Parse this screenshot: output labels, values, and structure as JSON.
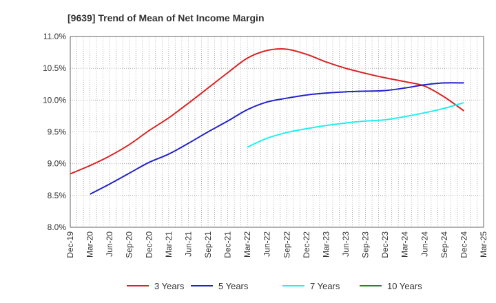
{
  "chart_data": {
    "type": "line",
    "title": "[9639]  Trend of Mean of Net Income Margin",
    "xlabel": "",
    "ylabel": "",
    "x_ticks": [
      "Dec-19",
      "Mar-20",
      "Jun-20",
      "Sep-20",
      "Dec-20",
      "Mar-21",
      "Jun-21",
      "Sep-21",
      "Dec-21",
      "Mar-22",
      "Jun-22",
      "Sep-22",
      "Dec-22",
      "Mar-23",
      "Jun-23",
      "Sep-23",
      "Dec-23",
      "Mar-24",
      "Jun-24",
      "Sep-24",
      "Dec-24",
      "Mar-25"
    ],
    "y_ticks": [
      "8.0%",
      "8.5%",
      "9.0%",
      "9.5%",
      "10.0%",
      "10.5%",
      "11.0%"
    ],
    "ylim": [
      8.0,
      11.0
    ],
    "grid": true,
    "legend_position": "bottom",
    "series": [
      {
        "name": "3 Years",
        "color": "#dd2222",
        "x": [
          "Dec-19",
          "Mar-20",
          "Jun-20",
          "Sep-20",
          "Dec-20",
          "Mar-21",
          "Jun-21",
          "Sep-21",
          "Dec-21",
          "Mar-22",
          "Jun-22",
          "Sep-22",
          "Dec-22",
          "Mar-23",
          "Jun-23",
          "Sep-23",
          "Dec-23",
          "Mar-24",
          "Jun-24",
          "Sep-24",
          "Dec-24"
        ],
        "values": [
          8.84,
          8.97,
          9.12,
          9.3,
          9.52,
          9.72,
          9.95,
          10.19,
          10.43,
          10.66,
          10.78,
          10.8,
          10.72,
          10.6,
          10.5,
          10.42,
          10.35,
          10.29,
          10.22,
          10.05,
          9.83
        ]
      },
      {
        "name": "5 Years",
        "color": "#2222cc",
        "x": [
          "Mar-20",
          "Jun-20",
          "Sep-20",
          "Dec-20",
          "Mar-21",
          "Jun-21",
          "Sep-21",
          "Dec-21",
          "Mar-22",
          "Jun-22",
          "Sep-22",
          "Dec-22",
          "Mar-23",
          "Jun-23",
          "Sep-23",
          "Dec-23",
          "Mar-24",
          "Jun-24",
          "Sep-24",
          "Dec-24"
        ],
        "values": [
          8.52,
          8.68,
          8.85,
          9.02,
          9.15,
          9.32,
          9.5,
          9.67,
          9.85,
          9.97,
          10.03,
          10.08,
          10.11,
          10.13,
          10.14,
          10.15,
          10.19,
          10.24,
          10.27,
          10.27
        ]
      },
      {
        "name": "7 Years",
        "color": "#22eeee",
        "x": [
          "Mar-22",
          "Jun-22",
          "Sep-22",
          "Dec-22",
          "Mar-23",
          "Jun-23",
          "Sep-23",
          "Dec-23",
          "Mar-24",
          "Jun-24",
          "Sep-24",
          "Dec-24"
        ],
        "values": [
          9.26,
          9.4,
          9.49,
          9.55,
          9.6,
          9.64,
          9.67,
          9.69,
          9.74,
          9.8,
          9.87,
          9.96
        ]
      },
      {
        "name": "10 Years",
        "color": "#228822",
        "x": [],
        "values": []
      }
    ]
  }
}
